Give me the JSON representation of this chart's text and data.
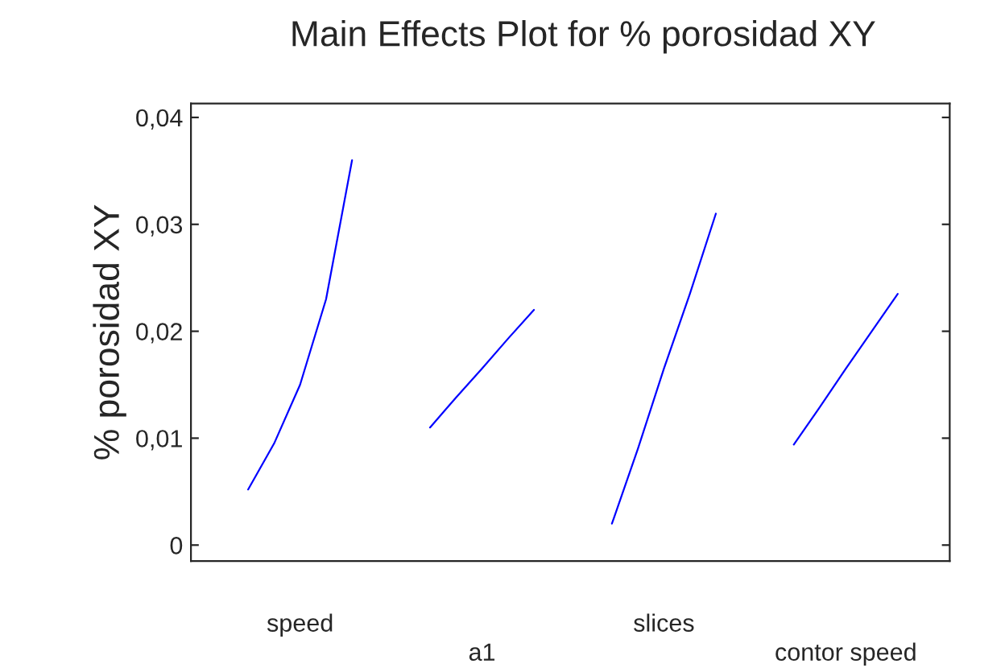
{
  "chart_data": {
    "type": "line",
    "title": "Main Effects Plot for % porosidad XY",
    "ylabel": "% porosidad XY",
    "categories": [
      null,
      null,
      "speed",
      null,
      null,
      null,
      null,
      null,
      null,
      "a1",
      null,
      null,
      null,
      null,
      null,
      null,
      "slices",
      null,
      null,
      null,
      null,
      null,
      null,
      "contor speed",
      null,
      null
    ],
    "ylim": [
      -0.0015,
      0.0413
    ],
    "yticks": [
      {
        "value": 0,
        "label": "0"
      },
      {
        "value": 0.01,
        "label": "0,01"
      },
      {
        "value": 0.02,
        "label": "0,02"
      },
      {
        "value": 0.03,
        "label": "0,03"
      },
      {
        "value": 0.04,
        "label": "0,04"
      }
    ],
    "grid": false,
    "marker": "none",
    "line_style": "solid",
    "series": [
      {
        "color": "#0000ff",
        "values": [
          0.0052,
          0.0095,
          0.015,
          0.023,
          0.036,
          null,
          null,
          null,
          null,
          null,
          null,
          null,
          null,
          null,
          null,
          null,
          null,
          null,
          null,
          null,
          null,
          null,
          null,
          null,
          null,
          null
        ]
      },
      {
        "color": "#0000ff",
        "values": [
          null,
          null,
          null,
          null,
          null,
          null,
          null,
          0.011,
          0.0138,
          0.0165,
          0.0193,
          0.022,
          null,
          null,
          null,
          null,
          null,
          null,
          null,
          null,
          null,
          null,
          null,
          null,
          null,
          null
        ]
      },
      {
        "color": "#0000ff",
        "values": [
          null,
          null,
          null,
          null,
          null,
          null,
          null,
          null,
          null,
          null,
          null,
          null,
          null,
          null,
          0.002,
          0.009,
          0.0165,
          0.0235,
          0.031,
          null,
          null,
          null,
          null,
          null,
          null,
          null
        ]
      },
      {
        "color": "#0000ff",
        "values": [
          null,
          null,
          null,
          null,
          null,
          null,
          null,
          null,
          null,
          null,
          null,
          null,
          null,
          null,
          null,
          null,
          null,
          null,
          null,
          null,
          null,
          0.0094,
          0.0129,
          0.0165,
          0.02,
          0.0235
        ]
      }
    ]
  }
}
